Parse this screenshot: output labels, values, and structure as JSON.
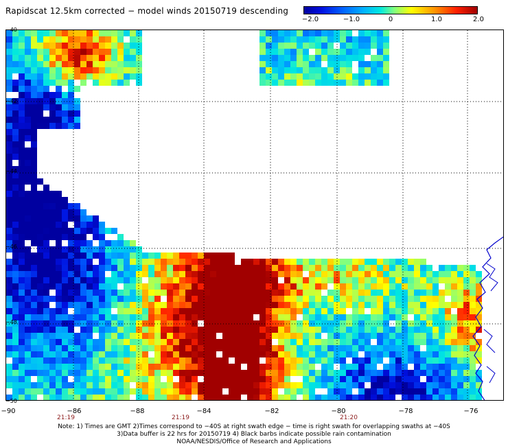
{
  "title": "Rapidscat 12.5km corrected − model winds 20150719 descending",
  "colorbar": {
    "ticks": [
      "−2.0",
      "−1.0",
      "0",
      "1.0",
      "2.0"
    ],
    "range": [
      -2.0,
      2.0
    ]
  },
  "map": {
    "lat_labels": [
      "−40",
      "−42",
      "−44",
      "−46",
      "−48",
      "−50"
    ],
    "lat_range": [
      -50,
      -40
    ],
    "lon_labels": [
      "−90",
      "−86",
      "−88",
      "−84",
      "−82",
      "−80",
      "−78",
      "−76"
    ],
    "lon_range": [
      -90,
      -75
    ],
    "time_labels": [
      "21:19",
      "21:19",
      "21:20"
    ],
    "swath_note": "descending pass, colored pixels show wind speed difference (corrected − model)"
  },
  "notes": [
    "Note: 1) Times are GMT 2)Times correspond to −40S at right swath edge − time is right swath for overlapping swaths at −40S",
    "3)Data buffer is 22 hrs for 20150719 4) Black barbs indicate possible rain contamination",
    "NOAA/NESDIS/Office of Research and Applications"
  ],
  "colors": {
    "dark_blue": "#0000a0",
    "blue": "#0040ff",
    "cyan": "#00e0ff",
    "green": "#60ff90",
    "yellow": "#ffff00",
    "orange": "#ff9000",
    "red": "#ff2000",
    "dark_red": "#8b0000",
    "coast": "#0000cc"
  }
}
